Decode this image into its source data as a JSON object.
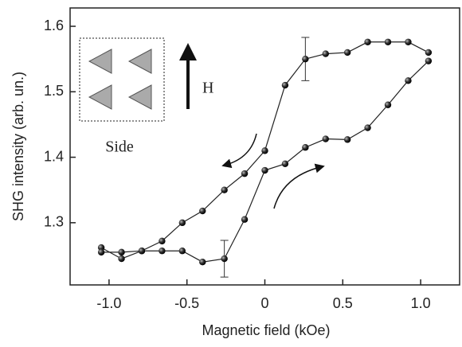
{
  "chart_data": {
    "type": "line",
    "xlabel": "Magnetic field (kOe)",
    "ylabel": "SHG intensity (arb. un.)",
    "annotations": [
      "Side",
      "H"
    ],
    "xlim": [
      -1.25,
      1.25
    ],
    "ylim": [
      1.205,
      1.628
    ],
    "xticks": [
      {
        "value": -1,
        "label": "-1.0"
      },
      -0.5,
      0,
      0.5,
      {
        "value": 1,
        "label": "1.0"
      }
    ],
    "yticks": [
      1.3,
      1.4,
      1.5,
      1.6
    ],
    "series": [
      {
        "color": "#222222",
        "x": [
          -1.05,
          -0.92,
          -0.79,
          -0.66,
          -0.53,
          -0.4,
          -0.26,
          -0.13,
          0,
          0.13,
          0.26,
          0.39,
          0.53,
          0.66,
          0.79,
          0.92,
          1.05
        ],
        "values": [
          1.262,
          1.245,
          1.257,
          1.257,
          1.257,
          1.24,
          1.245,
          1.305,
          1.38,
          1.39,
          1.415,
          1.428,
          1.427,
          1.445,
          1.48,
          1.517,
          1.547
        ],
        "errors": [
          null,
          null,
          null,
          null,
          null,
          null,
          0.028,
          null,
          null,
          null,
          null,
          null,
          null,
          null,
          null,
          null,
          null
        ]
      },
      {
        "color": "#222222",
        "x": [
          1.05,
          0.92,
          0.79,
          0.66,
          0.53,
          0.39,
          0.26,
          0.13,
          0,
          -0.13,
          -0.26,
          -0.4,
          -0.53,
          -0.66,
          -0.79,
          -0.92,
          -1.05
        ],
        "values": [
          1.56,
          1.576,
          1.576,
          1.576,
          1.56,
          1.558,
          1.55,
          1.51,
          1.41,
          1.375,
          1.35,
          1.318,
          1.3,
          1.272,
          1.257,
          1.255,
          1.255
        ],
        "errors": [
          null,
          null,
          null,
          null,
          null,
          null,
          0.033,
          null,
          null,
          null,
          null,
          null,
          null,
          null,
          null,
          null,
          null
        ]
      }
    ]
  }
}
